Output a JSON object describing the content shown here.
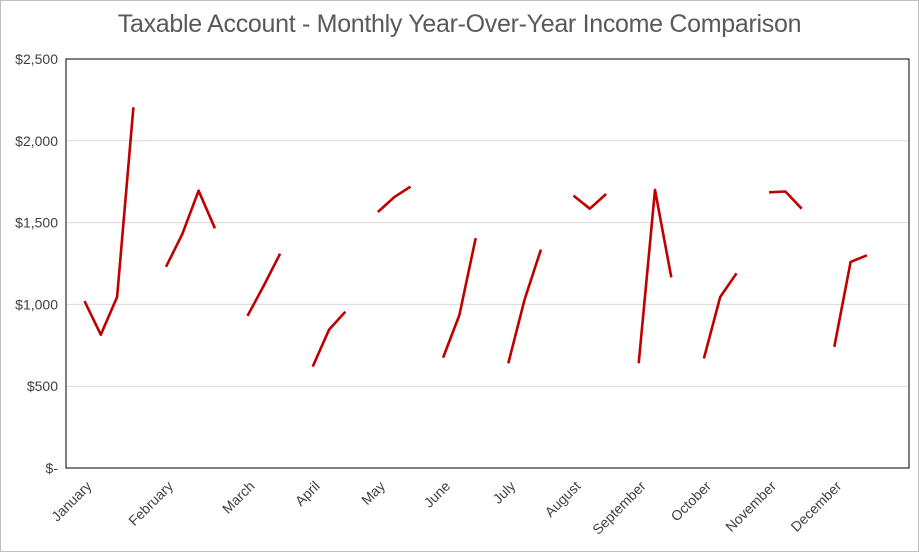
{
  "chart_data": {
    "type": "line",
    "title": "Taxable Account - Monthly Year-Over-Year Income Comparison",
    "xlabel": "",
    "ylabel": "",
    "categories": [
      "January",
      "February",
      "March",
      "April",
      "May",
      "June",
      "July",
      "August",
      "September",
      "October",
      "November",
      "December"
    ],
    "ylim": [
      0,
      2500
    ],
    "y_ticks": [
      0,
      500,
      1000,
      1500,
      2000,
      2500
    ],
    "y_tick_labels": [
      "$-",
      "$500",
      "$1,000",
      "$1,500",
      "$2,000",
      "$2,500"
    ],
    "grid": true,
    "legend": "none",
    "line_color": "#C00000",
    "groups": [
      {
        "category": "January",
        "values": [
          1020,
          815,
          1045,
          2205
        ]
      },
      {
        "category": "February",
        "values": [
          1230,
          1430,
          1695,
          1465
        ]
      },
      {
        "category": "March",
        "values": [
          930,
          1115,
          1310
        ]
      },
      {
        "category": "April",
        "values": [
          620,
          845,
          955
        ]
      },
      {
        "category": "May",
        "values": [
          1565,
          1655,
          1720
        ]
      },
      {
        "category": "June",
        "values": [
          675,
          935,
          1405
        ]
      },
      {
        "category": "July",
        "values": [
          640,
          1030,
          1335
        ]
      },
      {
        "category": "August",
        "values": [
          1665,
          1585,
          1675
        ]
      },
      {
        "category": "September",
        "values": [
          640,
          1700,
          1165
        ]
      },
      {
        "category": "October",
        "values": [
          670,
          1045,
          1190
        ]
      },
      {
        "category": "November",
        "values": [
          1685,
          1690,
          1585
        ]
      },
      {
        "category": "December",
        "values": [
          740,
          1260,
          1300
        ]
      }
    ]
  }
}
